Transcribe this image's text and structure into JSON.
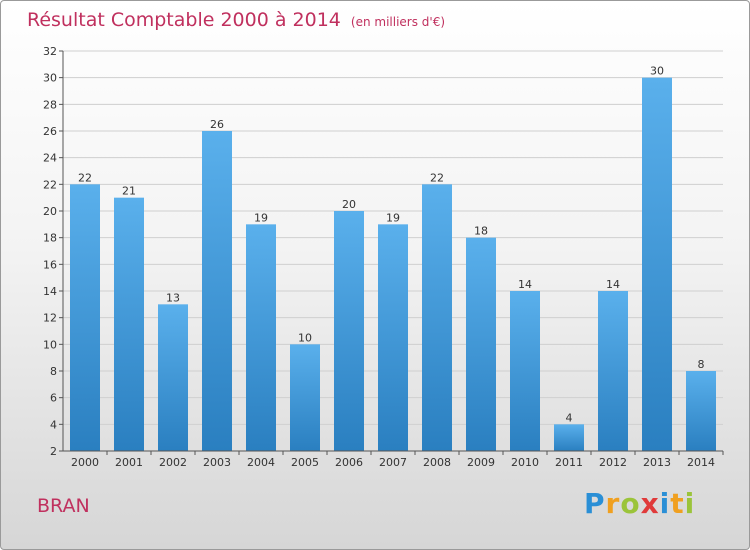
{
  "header": {
    "title": "Résultat Comptable 2000 à 2014",
    "subtitle": "(en milliers d'€)"
  },
  "commune": "BRAN",
  "logo": {
    "text": "Proxiti",
    "letters": [
      {
        "ch": "P",
        "color": "#2a8fd6"
      },
      {
        "ch": "r",
        "color": "#f0a020"
      },
      {
        "ch": "o",
        "color": "#9bc43a"
      },
      {
        "ch": "x",
        "color": "#e03a3a"
      },
      {
        "ch": "i",
        "color": "#2a8fd6"
      },
      {
        "ch": "t",
        "color": "#f0a020"
      },
      {
        "ch": "i",
        "color": "#9bc43a"
      }
    ]
  },
  "colors": {
    "title": "#c0305e",
    "bar_top": "#5ab0ec",
    "bar_bottom": "#2a7fc0",
    "grid": "#cfcfcf"
  },
  "chart_data": {
    "type": "bar",
    "title": "Résultat Comptable 2000 à 2014",
    "subtitle": "(en milliers d'€)",
    "xlabel": "",
    "ylabel": "",
    "categories": [
      "2000",
      "2001",
      "2002",
      "2003",
      "2004",
      "2005",
      "2006",
      "2007",
      "2008",
      "2009",
      "2010",
      "2011",
      "2012",
      "2013",
      "2014"
    ],
    "values": [
      22,
      21,
      13,
      26,
      19,
      10,
      20,
      19,
      22,
      18,
      14,
      4,
      14,
      30,
      8
    ],
    "ylim": [
      2,
      32
    ],
    "yticks": [
      2,
      4,
      6,
      8,
      10,
      12,
      14,
      16,
      18,
      20,
      22,
      24,
      26,
      28,
      30,
      32
    ],
    "grid": true,
    "legend": "none"
  }
}
